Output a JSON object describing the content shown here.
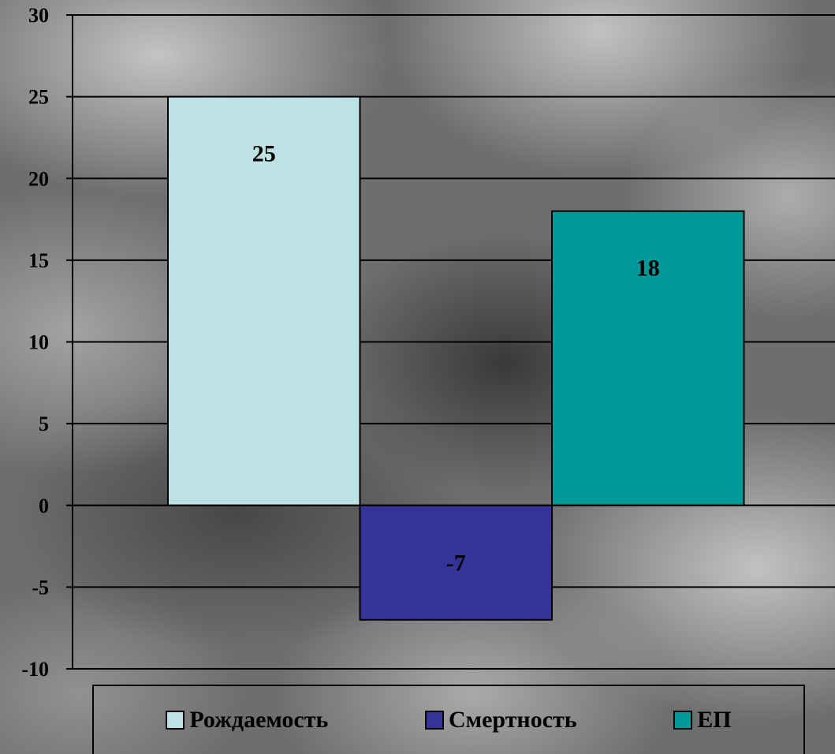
{
  "chart_data": {
    "type": "bar",
    "categories": [
      "Рождаемость",
      "Смертность",
      "ЕП"
    ],
    "values": [
      25,
      -7,
      18
    ],
    "data_labels": [
      "25",
      "-7",
      "18"
    ],
    "colors": [
      "#bde2e5",
      "#333399",
      "#009999"
    ],
    "ylim": [
      -10,
      30
    ],
    "yticks": [
      30,
      25,
      20,
      15,
      10,
      5,
      0,
      -5,
      -10
    ],
    "ytick_labels": [
      "30",
      "25",
      "20",
      "15",
      "10",
      "5",
      "0",
      "-5",
      "-10"
    ],
    "grid": true,
    "legend_position": "bottom",
    "title": "",
    "xlabel": "",
    "ylabel": ""
  },
  "legend": {
    "items": [
      {
        "label": "Рождаемость",
        "color": "#bde2e5"
      },
      {
        "label": "Смертность",
        "color": "#333399"
      },
      {
        "label": "ЕП",
        "color": "#009999"
      }
    ]
  }
}
